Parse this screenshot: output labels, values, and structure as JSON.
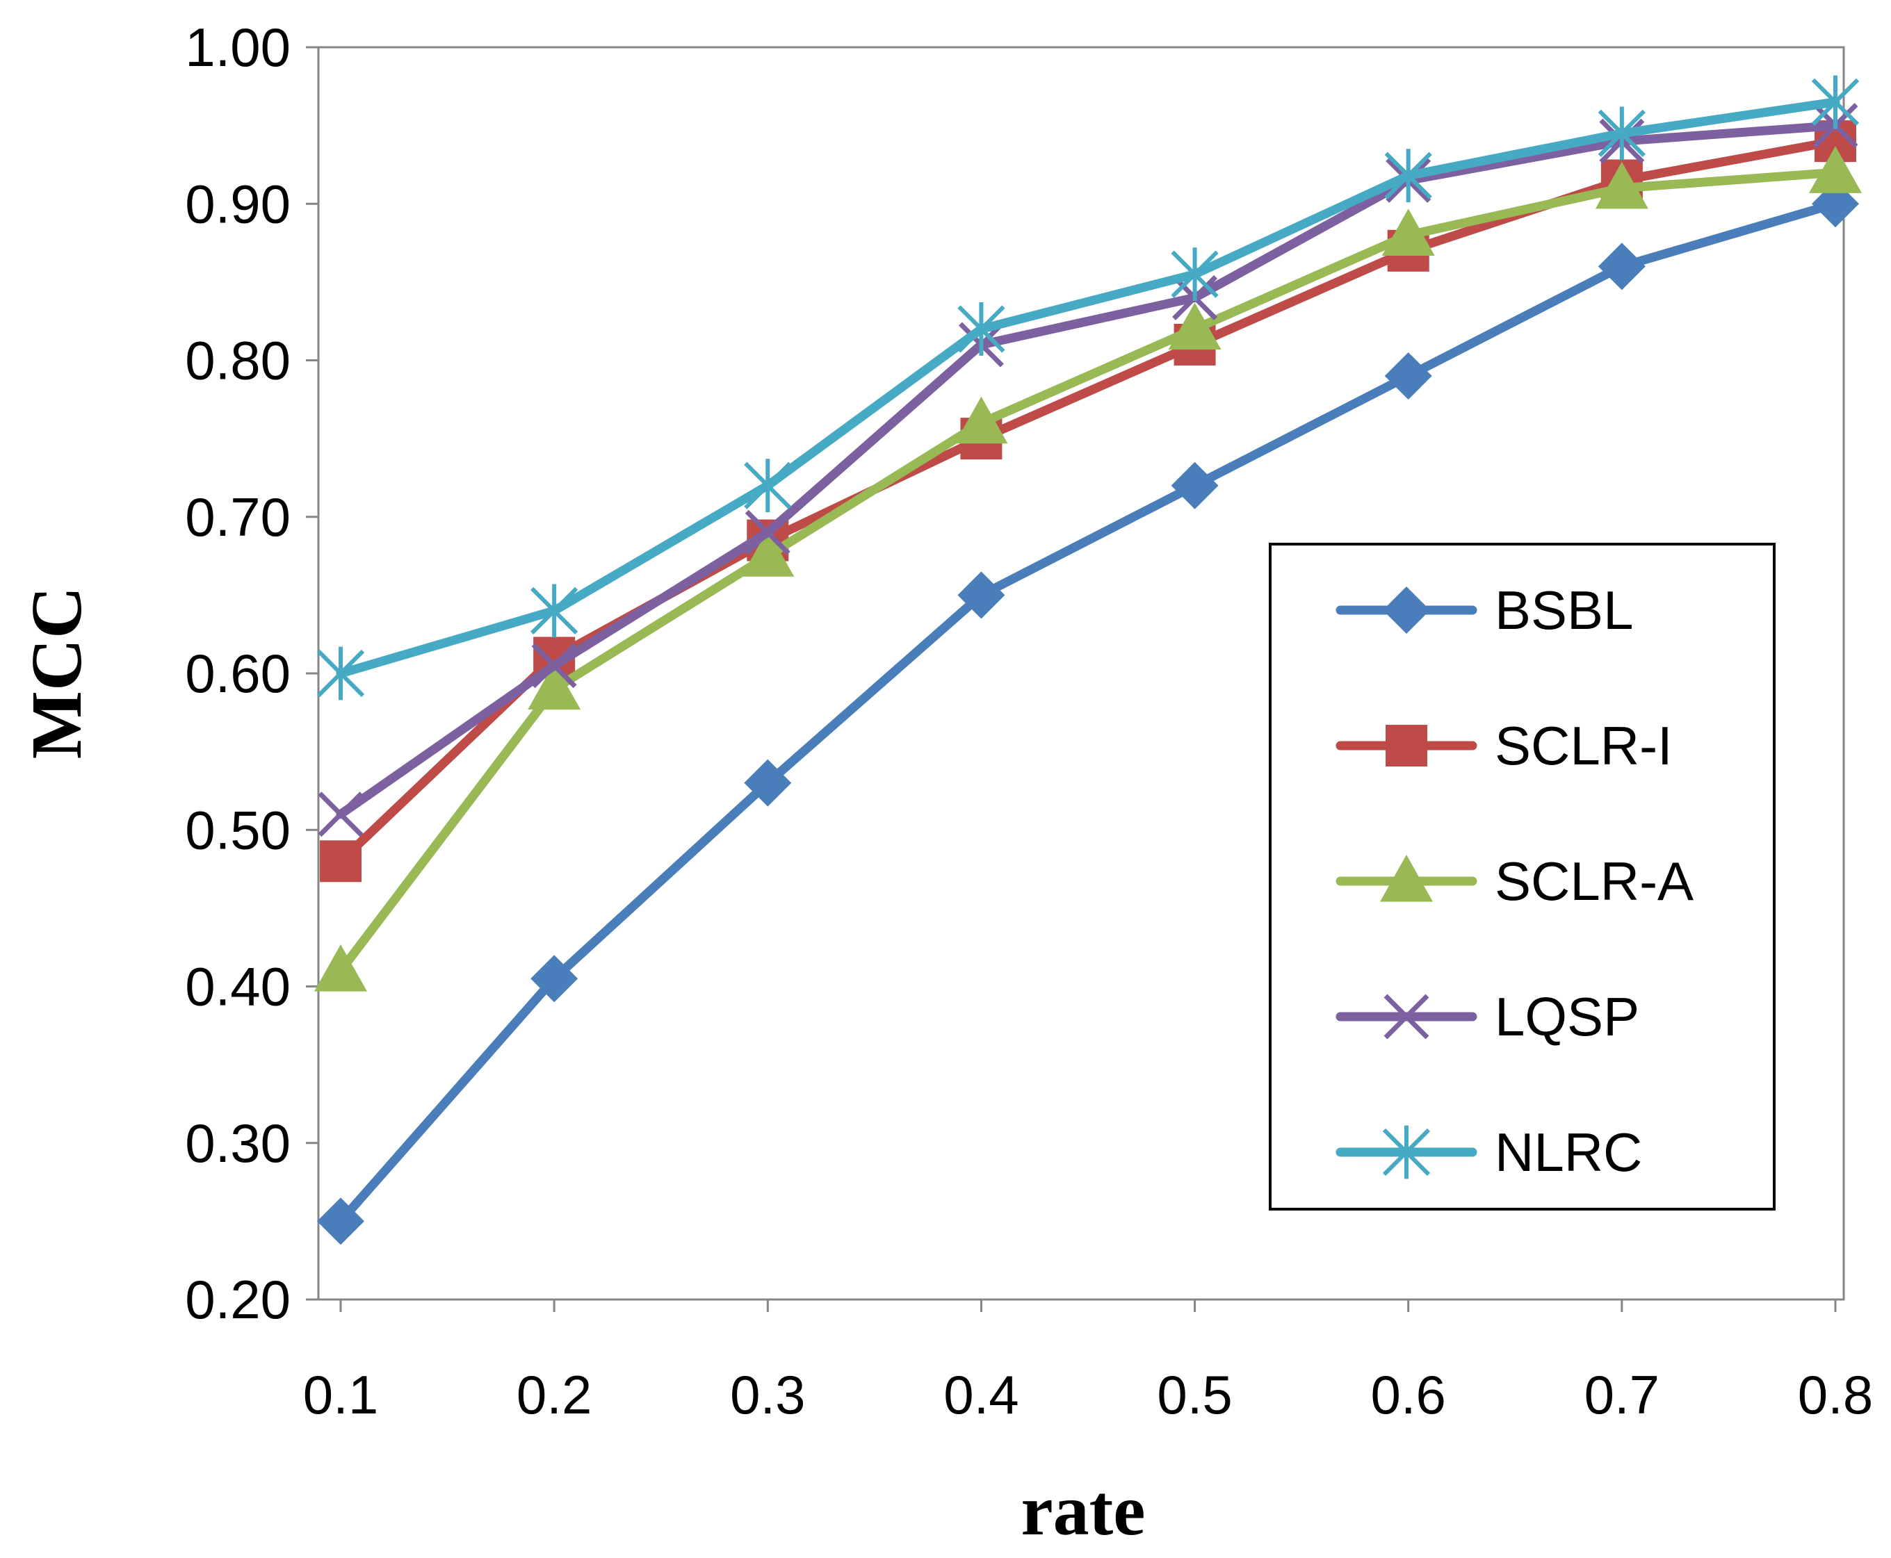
{
  "chart_data": {
    "type": "line",
    "title": "",
    "xlabel": "rate",
    "ylabel": "MCC",
    "x": [
      0.1,
      0.2,
      0.3,
      0.4,
      0.5,
      0.6,
      0.7,
      0.8
    ],
    "x_tick_labels": [
      "0.1",
      "0.2",
      "0.3",
      "0.4",
      "0.5",
      "0.6",
      "0.7",
      "0.8"
    ],
    "ylim": [
      0.2,
      1.0
    ],
    "y_ticks": [
      0.2,
      0.3,
      0.4,
      0.5,
      0.6,
      0.7,
      0.8,
      0.9,
      1.0
    ],
    "y_tick_labels": [
      "0.20",
      "0.30",
      "0.40",
      "0.50",
      "0.60",
      "0.70",
      "0.80",
      "0.90",
      "1.00"
    ],
    "grid": false,
    "legend_position": "right",
    "series": [
      {
        "name": "BSBL",
        "color": "#4A7EBB",
        "marker": "diamond",
        "values": [
          0.25,
          0.405,
          0.53,
          0.65,
          0.72,
          0.79,
          0.86,
          0.9
        ]
      },
      {
        "name": "SCLR-I",
        "color": "#BE4B48",
        "marker": "square",
        "values": [
          0.48,
          0.61,
          0.685,
          0.75,
          0.81,
          0.87,
          0.915,
          0.94
        ]
      },
      {
        "name": "SCLR-A",
        "color": "#98B954",
        "marker": "triangle",
        "values": [
          0.41,
          0.59,
          0.675,
          0.76,
          0.82,
          0.88,
          0.91,
          0.92
        ]
      },
      {
        "name": "LQSP",
        "color": "#7D60A0",
        "marker": "x",
        "values": [
          0.51,
          0.605,
          0.69,
          0.81,
          0.84,
          0.915,
          0.94,
          0.95
        ]
      },
      {
        "name": "NLRC",
        "color": "#46AAC5",
        "marker": "star",
        "values": [
          0.6,
          0.64,
          0.72,
          0.82,
          0.855,
          0.918,
          0.945,
          0.965
        ]
      }
    ]
  }
}
